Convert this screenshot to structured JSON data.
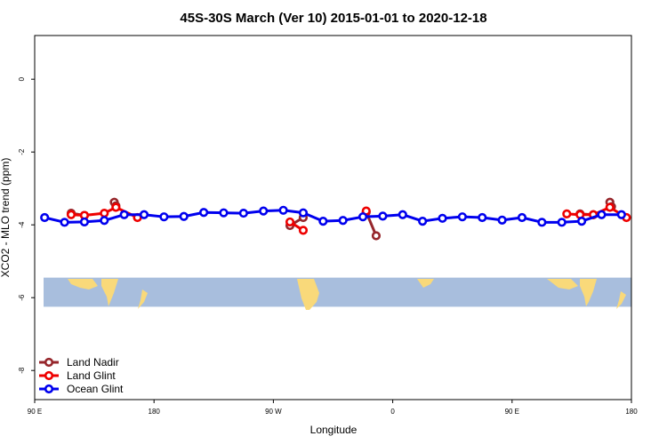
{
  "chart_data": {
    "type": "line",
    "title": "45S-30S March (Ver 10)   2015-01-01 to 2020-12-18",
    "xlabel": "Longitude",
    "ylabel": "XCO2 - MLO trend (ppm)",
    "xlim": [
      -90,
      270
    ],
    "ylim": [
      -8.8,
      1.2
    ],
    "x_ticks": [
      {
        "value": -90,
        "label": "90 E"
      },
      {
        "value": -18,
        "label": "180"
      },
      {
        "value": 54,
        "label": "90 W"
      },
      {
        "value": 126,
        "label": "0"
      },
      {
        "value": 198,
        "label": "90 E"
      },
      {
        "value": 270,
        "label": "180"
      }
    ],
    "y_ticks": [
      {
        "value": 0,
        "label": "0"
      },
      {
        "value": -2,
        "label": "-2"
      },
      {
        "value": -4,
        "label": "-4"
      },
      {
        "value": -6,
        "label": "-6"
      },
      {
        "value": -8,
        "label": "-8"
      }
    ],
    "map_band": {
      "y_top": -5.45,
      "y_bottom": -6.25,
      "ocean_color": "#a8bedd",
      "land_color": "#f9d97a"
    },
    "legend_position": "bottom-left",
    "series": [
      {
        "name": "Land Nadir",
        "color": "#96262b",
        "segments": [
          [
            [
              -68,
              -3.68
            ],
            [
              -60,
              -3.74
            ]
          ],
          [
            [
              -42,
              -3.38
            ],
            [
              -41,
              -3.48
            ]
          ],
          [
            [
              64,
              -4.02
            ],
            [
              72,
              -3.8
            ]
          ],
          [
            [
              110,
              -3.65
            ],
            [
              116,
              -4.3
            ]
          ],
          [
            [
              239,
              -3.7
            ],
            [
              247,
              -3.72
            ]
          ],
          [
            [
              257,
              -3.38
            ],
            [
              258,
              -3.5
            ]
          ]
        ]
      },
      {
        "name": "Land Glint",
        "color": "#ee0000",
        "segments": [
          [
            [
              -68,
              -3.72
            ],
            [
              -60,
              -3.74
            ],
            [
              -48,
              -3.68
            ],
            [
              -41,
              -3.52
            ],
            [
              -28,
              -3.8
            ]
          ],
          [
            [
              64,
              -3.92
            ],
            [
              72,
              -4.15
            ]
          ],
          [
            [
              110,
              -3.62
            ]
          ],
          [
            [
              231,
              -3.7
            ],
            [
              239,
              -3.72
            ],
            [
              247,
              -3.72
            ],
            [
              257,
              -3.52
            ],
            [
              267,
              -3.8
            ]
          ]
        ]
      },
      {
        "name": "Ocean Glint",
        "color": "#0000ee",
        "segments": [
          [
            [
              -84,
              -3.8
            ],
            [
              -72,
              -3.93
            ],
            [
              -60,
              -3.92
            ],
            [
              -48,
              -3.88
            ],
            [
              -36,
              -3.72
            ],
            [
              -24,
              -3.72
            ],
            [
              -12,
              -3.78
            ],
            [
              0,
              -3.77
            ],
            [
              12,
              -3.66
            ],
            [
              24,
              -3.67
            ],
            [
              36,
              -3.68
            ],
            [
              48,
              -3.62
            ],
            [
              60,
              -3.6
            ],
            [
              72,
              -3.67
            ],
            [
              84,
              -3.9
            ],
            [
              96,
              -3.88
            ],
            [
              108,
              -3.78
            ],
            [
              120,
              -3.76
            ],
            [
              132,
              -3.72
            ],
            [
              144,
              -3.9
            ],
            [
              156,
              -3.82
            ],
            [
              168,
              -3.78
            ],
            [
              180,
              -3.8
            ],
            [
              192,
              -3.87
            ],
            [
              204,
              -3.8
            ],
            [
              216,
              -3.93
            ],
            [
              228,
              -3.93
            ],
            [
              240,
              -3.9
            ],
            [
              252,
              -3.72
            ],
            [
              264,
              -3.72
            ]
          ]
        ]
      }
    ]
  }
}
